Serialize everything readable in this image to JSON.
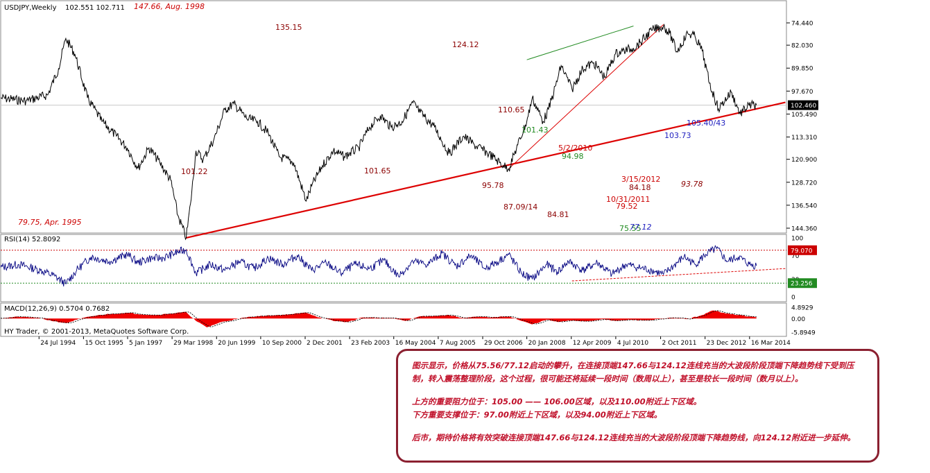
{
  "window": {
    "symbol_header": "USDJPY,Weekly",
    "ohlc_header": "102.551 102.711",
    "copyright": "HY Trader, © 2001-2013, MetaQuotes Software Corp."
  },
  "chart_data": [
    {
      "type": "line",
      "panel": "price",
      "ylim": [
        74.44,
        150.0
      ],
      "yticks": [
        "144.360",
        "136.540",
        "128.720",
        "120.900",
        "113.310",
        "105.490",
        "97.670",
        "89.850",
        "82.030",
        "74.440"
      ],
      "current_price": "102.460",
      "x_ticks": [
        "24 Jul 1994",
        "15 Oct 1995",
        "5 Jan 1997",
        "29 Mar 1998",
        "20 Jun 1999",
        "10 Sep 2000",
        "2 Dec 2001",
        "23 Feb 2003",
        "16 May 2004",
        "7 Aug 2005",
        "29 Oct 2006",
        "20 Jan 2008",
        "12 Apr 2009",
        "4 Jul 2010",
        "2 Oct 2011",
        "23 Dec 2012",
        "16 Mar 2014"
      ],
      "x_years": [
        1994.56,
        1995.79,
        1997.01,
        1998.24,
        1999.47,
        2000.69,
        2001.92,
        2003.15,
        2004.37,
        2005.6,
        2006.83,
        2008.05,
        2009.28,
        2010.51,
        2011.75,
        2012.98,
        2014.21
      ],
      "series": [
        {
          "x": [
            1993.5,
            1994.2,
            1994.8,
            1995.1,
            1995.3,
            1995.55,
            1995.9,
            1996.3,
            1996.7,
            1997.0,
            1997.3,
            1997.6,
            1997.9,
            1998.2,
            1998.4,
            1998.63,
            1998.75,
            1998.9,
            1999.1,
            1999.4,
            1999.7,
            1999.95,
            2000.3,
            2000.6,
            2000.9,
            2001.2,
            2001.6,
            2001.95,
            2002.1,
            2002.4,
            2002.7,
            2003.0,
            2003.4,
            2003.7,
            2004.0,
            2004.3,
            2004.6,
            2004.9,
            2005.1,
            2005.5,
            2005.9,
            2006.3,
            2006.6,
            2007.0,
            2007.4,
            2007.55,
            2007.8,
            2008.05,
            2008.2,
            2008.5,
            2008.65,
            2008.85,
            2009.0,
            2009.3,
            2009.6,
            2009.9,
            2010.2,
            2010.5,
            2010.7,
            2011.0,
            2011.2,
            2011.5,
            2011.83,
            2012.0,
            2012.2,
            2012.5,
            2012.7,
            2012.9,
            2013.1,
            2013.35,
            2013.7,
            2013.95,
            2014.2,
            2014.4
          ],
          "y": [
            100.0,
            101.0,
            99.0,
            90.0,
            79.75,
            85.0,
            100.0,
            108.0,
            113.0,
            117.0,
            124.0,
            117.0,
            122.0,
            128.0,
            140.0,
            147.66,
            136.0,
            118.0,
            121.0,
            114.0,
            104.0,
            102.0,
            107.0,
            108.0,
            112.0,
            120.0,
            122.0,
            135.15,
            130.0,
            123.0,
            118.0,
            120.0,
            117.0,
            110.0,
            106.0,
            110.0,
            108.0,
            101.65,
            105.0,
            110.0,
            119.0,
            113.0,
            116.0,
            119.0,
            123.0,
            124.12,
            116.0,
            108.0,
            100.0,
            108.0,
            104.0,
            95.78,
            89.0,
            97.0,
            90.0,
            88.0,
            93.0,
            85.0,
            84.0,
            83.0,
            81.0,
            77.0,
            75.56,
            78.0,
            84.18,
            78.0,
            79.0,
            84.0,
            95.0,
            103.73,
            98.0,
            105.4,
            102.5,
            102.46
          ]
        }
      ],
      "annotations": [
        {
          "text": "147.66, Aug. 1998",
          "color": "#cc0000",
          "italic": true
        },
        {
          "text": "135.15",
          "color": "#8b0000"
        },
        {
          "text": "124.12",
          "color": "#8b0000"
        },
        {
          "text": "110.65",
          "color": "#8b0000"
        },
        {
          "text": "101.43",
          "color": "#228b22"
        },
        {
          "text": "5/2/2010",
          "color": "#cc0000"
        },
        {
          "text": "94.98",
          "color": "#228b22"
        },
        {
          "text": "101.22",
          "color": "#8b0000"
        },
        {
          "text": "101.65",
          "color": "#8b0000"
        },
        {
          "text": "95.78",
          "color": "#8b0000"
        },
        {
          "text": "87.09/14",
          "color": "#8b0000"
        },
        {
          "text": "84.81",
          "color": "#8b0000"
        },
        {
          "text": "10/31/2011",
          "color": "#cc0000"
        },
        {
          "text": "79.52",
          "color": "#cc0000"
        },
        {
          "text": "3/15/2012",
          "color": "#cc0000"
        },
        {
          "text": "84.18",
          "color": "#8b0000"
        },
        {
          "text": "93.78",
          "color": "#8b0000",
          "italic": true
        },
        {
          "text": "103.73",
          "color": "#2020c0"
        },
        {
          "text": "105.40/43",
          "color": "#2020c0"
        },
        {
          "text": "75.55",
          "color": "#228b22"
        },
        {
          "text": "77.12",
          "color": "#2020c0",
          "italic": true
        },
        {
          "text": "79.75,  Apr. 1995",
          "color": "#cc0000",
          "italic": true
        }
      ],
      "trendlines": [
        {
          "from": [
            1998.63,
            147.66
          ],
          "to": [
            2015.2,
            101.5
          ],
          "color": "#dd0000"
        },
        {
          "from": [
            2007.55,
            124.12
          ],
          "to": [
            2011.83,
            75.0
          ],
          "color": "#dd0000"
        },
        {
          "from": [
            2008.05,
            87.0
          ],
          "to": [
            2011.0,
            75.5
          ],
          "color": "#228b22"
        }
      ]
    },
    {
      "type": "line",
      "panel": "rsi",
      "title": "RSI(14) 52.8092",
      "ylim": [
        0,
        100
      ],
      "yticks": [
        "100",
        "70",
        "30",
        "0"
      ],
      "levels": [
        79.07,
        23.256
      ],
      "level_labels": [
        "79.070",
        "23.256"
      ],
      "series": [
        {
          "x": [
            1993.5,
            1994.0,
            1994.6,
            1995.0,
            1995.3,
            1995.6,
            1996.0,
            1996.5,
            1997.0,
            1997.3,
            1997.6,
            1998.0,
            1998.4,
            1998.63,
            1998.9,
            1999.3,
            1999.7,
            2000.1,
            2000.5,
            2000.9,
            2001.3,
            2001.7,
            2002.1,
            2002.5,
            2002.9,
            2003.3,
            2003.7,
            2004.1,
            2004.5,
            2004.9,
            2005.3,
            2005.7,
            2006.1,
            2006.5,
            2006.9,
            2007.3,
            2007.55,
            2007.9,
            2008.2,
            2008.6,
            2008.9,
            2009.2,
            2009.6,
            2010.0,
            2010.4,
            2010.8,
            2011.1,
            2011.5,
            2011.83,
            2012.1,
            2012.4,
            2012.7,
            2013.0,
            2013.3,
            2013.6,
            2013.9,
            2014.2,
            2014.4
          ],
          "y": [
            50,
            55,
            45,
            35,
            22,
            45,
            68,
            60,
            72,
            58,
            65,
            66,
            76,
            80,
            40,
            55,
            45,
            60,
            48,
            66,
            55,
            70,
            45,
            58,
            40,
            55,
            48,
            62,
            35,
            60,
            55,
            74,
            52,
            70,
            48,
            62,
            72,
            40,
            30,
            55,
            42,
            60,
            45,
            58,
            38,
            55,
            50,
            45,
            38,
            52,
            68,
            55,
            72,
            82,
            60,
            68,
            55,
            52.8
          ]
        }
      ],
      "trendline": {
        "from": [
          2009.3,
          27
        ],
        "to": [
          2015.2,
          48
        ],
        "color": "#dd0000"
      }
    },
    {
      "type": "area",
      "panel": "macd",
      "title": "MACD(12,26,9) 0.5704 0.7682",
      "ylim": [
        -5.8949,
        4.8929
      ],
      "yticks": [
        "4.8929",
        "0.00",
        "-5.8949"
      ],
      "series": [
        {
          "name": "MACD",
          "x": [
            1993.5,
            1994.0,
            1994.5,
            1995.0,
            1995.3,
            1995.6,
            1996.0,
            1996.5,
            1997.0,
            1997.4,
            1997.8,
            1998.2,
            1998.63,
            1998.9,
            1999.2,
            1999.6,
            2000.0,
            2000.4,
            2000.8,
            2001.2,
            2001.6,
            2001.95,
            2002.3,
            2002.7,
            2003.1,
            2003.5,
            2003.9,
            2004.3,
            2004.7,
            2005.1,
            2005.5,
            2005.9,
            2006.3,
            2006.7,
            2007.1,
            2007.55,
            2007.9,
            2008.2,
            2008.6,
            2008.9,
            2009.3,
            2009.7,
            2010.1,
            2010.5,
            2010.9,
            2011.3,
            2011.7,
            2012.1,
            2012.5,
            2012.9,
            2013.2,
            2013.5,
            2013.9,
            2014.2,
            2014.4
          ],
          "y": [
            0.2,
            0.8,
            0.3,
            -1.2,
            -2.0,
            -0.5,
            1.0,
            2.0,
            2.5,
            1.8,
            1.5,
            2.2,
            2.8,
            -1.0,
            -3.8,
            -1.5,
            -0.3,
            0.8,
            1.2,
            1.5,
            2.0,
            2.6,
            0.5,
            -1.0,
            -1.5,
            0.5,
            0.3,
            0.2,
            -1.0,
            1.0,
            1.2,
            1.5,
            0.2,
            0.8,
            0.5,
            1.0,
            -1.0,
            -2.5,
            -0.5,
            -1.5,
            -0.8,
            -1.2,
            -0.3,
            -1.0,
            -0.5,
            -0.8,
            -0.3,
            0.4,
            -0.2,
            1.5,
            3.5,
            2.5,
            1.5,
            0.9,
            0.57
          ]
        }
      ]
    }
  ],
  "commentary": {
    "p1": "图示显示，价格从75.56/77.12启动的攀升，在连接顶端147.66与124.12连线充当的大波段阶段顶端下降趋势线下受到压制，转入震荡整理阶段，这个过程，很可能还将延续一段时间（数周以上），甚至是较长一段时间（数月以上）。",
    "p2": "上方的重要阻力位于：105.00 —— 106.00区域，以及110.00附近上下区域。",
    "p3": "下方重要支撑位于：97.00附近上下区域，以及94.00附近上下区域。",
    "p4": "后市，期待价格将有效突破连接顶端147.66与124.12连线充当的大波段阶段顶端下降趋势线，向124.12附近进一步延伸。"
  },
  "colors": {
    "price_line": "#000000",
    "trend_red": "#dd0000",
    "trend_green": "#228b22",
    "rsi_line": "#000080",
    "macd_fill": "#ee0000",
    "note_border": "#8b2030",
    "note_text": "#c0102a"
  }
}
